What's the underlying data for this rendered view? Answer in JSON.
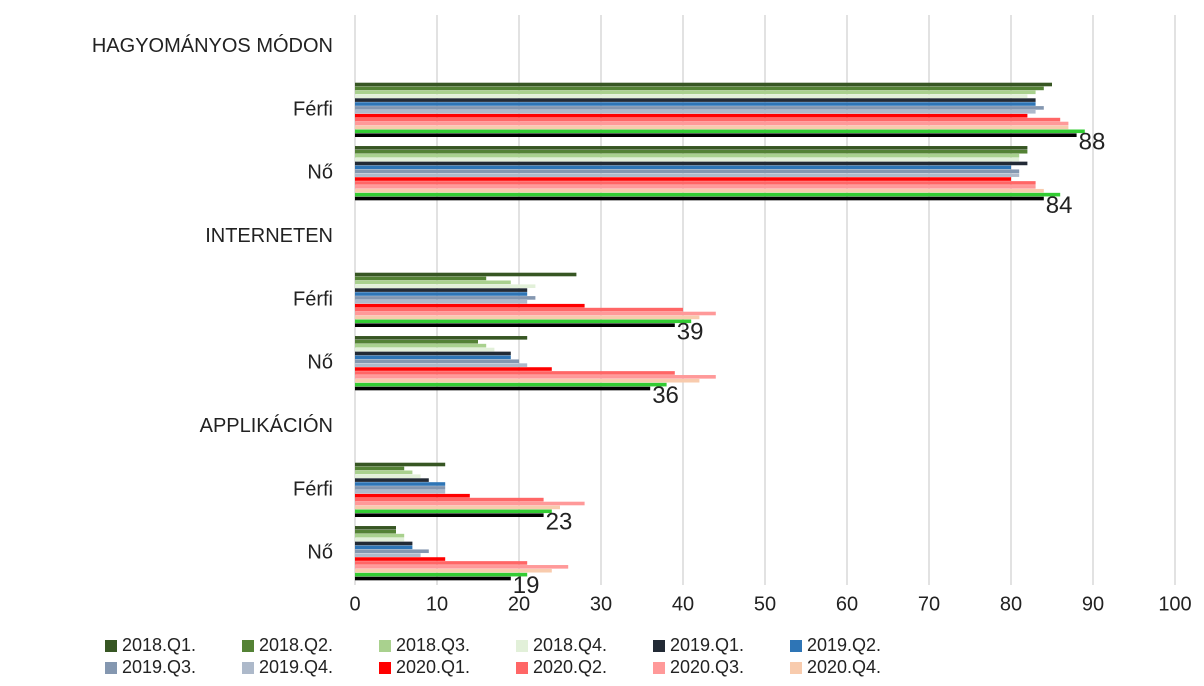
{
  "chart_data": {
    "type": "hbar",
    "categories": [
      "HAGYOMÁNYOS MÓDON",
      "Férfi",
      "Nő",
      "INTERNETEN",
      "Férfi",
      "Nő",
      "APPLIKÁCIÓN",
      "Férfi",
      "Nő"
    ],
    "series": [
      {
        "name": "2018.Q1.",
        "color": "#375623",
        "values": [
          null,
          85,
          82,
          null,
          27,
          21,
          null,
          11,
          5
        ]
      },
      {
        "name": "2018.Q2.",
        "color": "#548235",
        "values": [
          null,
          84,
          82,
          null,
          16,
          15,
          null,
          6,
          5
        ]
      },
      {
        "name": "2018.Q3.",
        "color": "#a9d18e",
        "values": [
          null,
          83,
          81,
          null,
          19,
          16,
          null,
          7,
          6
        ]
      },
      {
        "name": "2018.Q4.",
        "color": "#e2f0d9",
        "values": [
          null,
          82,
          81,
          null,
          22,
          17,
          null,
          8,
          6
        ]
      },
      {
        "name": "2019.Q1.",
        "color": "#222a35",
        "values": [
          null,
          83,
          82,
          null,
          21,
          19,
          null,
          9,
          7
        ]
      },
      {
        "name": "2019.Q2.",
        "color": "#2e75b6",
        "values": [
          null,
          83,
          80,
          null,
          21,
          19,
          null,
          11,
          7
        ]
      },
      {
        "name": "2019.Q3.",
        "color": "#8497b0",
        "values": [
          null,
          84,
          81,
          null,
          22,
          20,
          null,
          11,
          9
        ]
      },
      {
        "name": "2019.Q4.",
        "color": "#adb9ca",
        "values": [
          null,
          83,
          81,
          null,
          21,
          21,
          null,
          11,
          8
        ]
      },
      {
        "name": "2020.Q1.",
        "color": "#ff0000",
        "values": [
          null,
          82,
          80,
          null,
          28,
          24,
          null,
          14,
          11
        ]
      },
      {
        "name": "2020.Q2.",
        "color": "#ff6666",
        "values": [
          null,
          86,
          83,
          null,
          40,
          39,
          null,
          23,
          21
        ]
      },
      {
        "name": "2020.Q3.",
        "color": "#ff9999",
        "values": [
          null,
          87,
          83,
          null,
          44,
          44,
          null,
          28,
          26
        ]
      },
      {
        "name": "2020.Q4.",
        "color": "#f8cbad",
        "values": [
          null,
          87,
          84,
          null,
          42,
          42,
          null,
          25,
          24
        ]
      },
      {
        "color": "#33cc33",
        "values": [
          null,
          89,
          86,
          null,
          41,
          38,
          null,
          24,
          21
        ]
      },
      {
        "color": "#000000",
        "values": [
          null,
          88,
          84,
          null,
          39,
          36,
          null,
          23,
          19
        ],
        "data_labels": true
      }
    ],
    "xlim": [
      0,
      100
    ],
    "xticks": [
      0,
      10,
      20,
      30,
      40,
      50,
      60,
      70,
      80,
      90,
      100
    ],
    "grid": true
  }
}
